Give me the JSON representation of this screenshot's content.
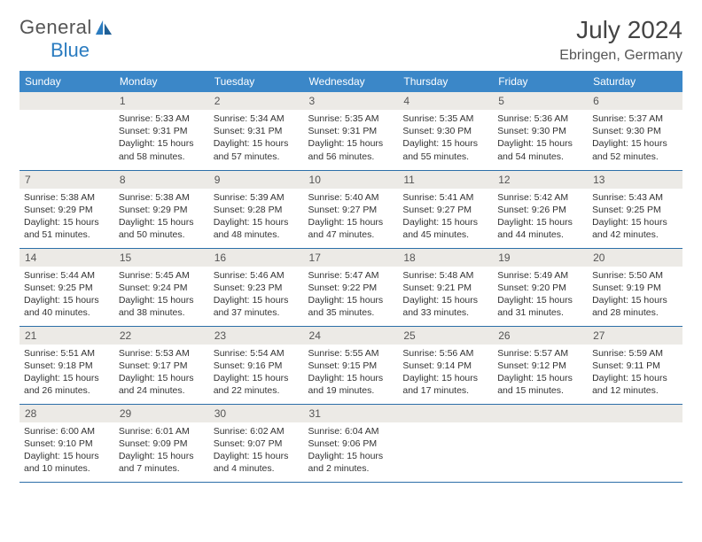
{
  "logo": {
    "text1": "General",
    "text2": "Blue"
  },
  "header": {
    "month_title": "July 2024",
    "location": "Ebringen, Germany"
  },
  "colors": {
    "header_bg": "#3b87c8",
    "header_text": "#ffffff",
    "daynum_bg": "#eceae6",
    "row_border": "#2c6fa8",
    "logo_blue": "#2b7cc0"
  },
  "days_of_week": [
    "Sunday",
    "Monday",
    "Tuesday",
    "Wednesday",
    "Thursday",
    "Friday",
    "Saturday"
  ],
  "calendar": {
    "first_weekday_index": 1,
    "num_days": 31,
    "entries": {
      "1": {
        "sunrise": "5:33 AM",
        "sunset": "9:31 PM",
        "daylight": "15 hours and 58 minutes."
      },
      "2": {
        "sunrise": "5:34 AM",
        "sunset": "9:31 PM",
        "daylight": "15 hours and 57 minutes."
      },
      "3": {
        "sunrise": "5:35 AM",
        "sunset": "9:31 PM",
        "daylight": "15 hours and 56 minutes."
      },
      "4": {
        "sunrise": "5:35 AM",
        "sunset": "9:30 PM",
        "daylight": "15 hours and 55 minutes."
      },
      "5": {
        "sunrise": "5:36 AM",
        "sunset": "9:30 PM",
        "daylight": "15 hours and 54 minutes."
      },
      "6": {
        "sunrise": "5:37 AM",
        "sunset": "9:30 PM",
        "daylight": "15 hours and 52 minutes."
      },
      "7": {
        "sunrise": "5:38 AM",
        "sunset": "9:29 PM",
        "daylight": "15 hours and 51 minutes."
      },
      "8": {
        "sunrise": "5:38 AM",
        "sunset": "9:29 PM",
        "daylight": "15 hours and 50 minutes."
      },
      "9": {
        "sunrise": "5:39 AM",
        "sunset": "9:28 PM",
        "daylight": "15 hours and 48 minutes."
      },
      "10": {
        "sunrise": "5:40 AM",
        "sunset": "9:27 PM",
        "daylight": "15 hours and 47 minutes."
      },
      "11": {
        "sunrise": "5:41 AM",
        "sunset": "9:27 PM",
        "daylight": "15 hours and 45 minutes."
      },
      "12": {
        "sunrise": "5:42 AM",
        "sunset": "9:26 PM",
        "daylight": "15 hours and 44 minutes."
      },
      "13": {
        "sunrise": "5:43 AM",
        "sunset": "9:25 PM",
        "daylight": "15 hours and 42 minutes."
      },
      "14": {
        "sunrise": "5:44 AM",
        "sunset": "9:25 PM",
        "daylight": "15 hours and 40 minutes."
      },
      "15": {
        "sunrise": "5:45 AM",
        "sunset": "9:24 PM",
        "daylight": "15 hours and 38 minutes."
      },
      "16": {
        "sunrise": "5:46 AM",
        "sunset": "9:23 PM",
        "daylight": "15 hours and 37 minutes."
      },
      "17": {
        "sunrise": "5:47 AM",
        "sunset": "9:22 PM",
        "daylight": "15 hours and 35 minutes."
      },
      "18": {
        "sunrise": "5:48 AM",
        "sunset": "9:21 PM",
        "daylight": "15 hours and 33 minutes."
      },
      "19": {
        "sunrise": "5:49 AM",
        "sunset": "9:20 PM",
        "daylight": "15 hours and 31 minutes."
      },
      "20": {
        "sunrise": "5:50 AM",
        "sunset": "9:19 PM",
        "daylight": "15 hours and 28 minutes."
      },
      "21": {
        "sunrise": "5:51 AM",
        "sunset": "9:18 PM",
        "daylight": "15 hours and 26 minutes."
      },
      "22": {
        "sunrise": "5:53 AM",
        "sunset": "9:17 PM",
        "daylight": "15 hours and 24 minutes."
      },
      "23": {
        "sunrise": "5:54 AM",
        "sunset": "9:16 PM",
        "daylight": "15 hours and 22 minutes."
      },
      "24": {
        "sunrise": "5:55 AM",
        "sunset": "9:15 PM",
        "daylight": "15 hours and 19 minutes."
      },
      "25": {
        "sunrise": "5:56 AM",
        "sunset": "9:14 PM",
        "daylight": "15 hours and 17 minutes."
      },
      "26": {
        "sunrise": "5:57 AM",
        "sunset": "9:12 PM",
        "daylight": "15 hours and 15 minutes."
      },
      "27": {
        "sunrise": "5:59 AM",
        "sunset": "9:11 PM",
        "daylight": "15 hours and 12 minutes."
      },
      "28": {
        "sunrise": "6:00 AM",
        "sunset": "9:10 PM",
        "daylight": "15 hours and 10 minutes."
      },
      "29": {
        "sunrise": "6:01 AM",
        "sunset": "9:09 PM",
        "daylight": "15 hours and 7 minutes."
      },
      "30": {
        "sunrise": "6:02 AM",
        "sunset": "9:07 PM",
        "daylight": "15 hours and 4 minutes."
      },
      "31": {
        "sunrise": "6:04 AM",
        "sunset": "9:06 PM",
        "daylight": "15 hours and 2 minutes."
      }
    }
  },
  "labels": {
    "sunrise": "Sunrise:",
    "sunset": "Sunset:",
    "daylight": "Daylight:"
  }
}
